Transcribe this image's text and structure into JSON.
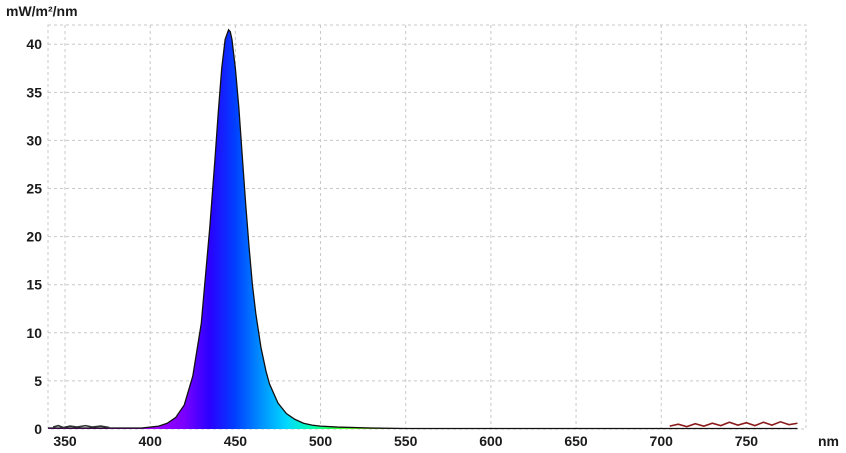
{
  "chart_data": {
    "type": "area",
    "title": "",
    "ylabel": "mW/m²/nm",
    "xlabel": "nm",
    "xlim": [
      340,
      785
    ],
    "ylim": [
      0,
      42
    ],
    "grid": true,
    "legend": "none",
    "xticks": [
      350,
      400,
      450,
      500,
      550,
      600,
      650,
      700,
      750
    ],
    "yticks": [
      0,
      5,
      10,
      15,
      20,
      25,
      30,
      35,
      40
    ],
    "series": [
      {
        "x": [
          340,
          380,
          395,
          405,
          410,
          415,
          420,
          425,
          430,
          435,
          438,
          440,
          442,
          444,
          446,
          447,
          448,
          450,
          452,
          454,
          456,
          458,
          460,
          462,
          465,
          468,
          470,
          475,
          480,
          485,
          490,
          495,
          500,
          510,
          520,
          530,
          550,
          600,
          700,
          780
        ],
        "y": [
          0.1,
          0.1,
          0.1,
          0.3,
          0.6,
          1.2,
          2.5,
          5.5,
          11,
          21,
          28,
          33,
          37.5,
          40.5,
          41.5,
          41.3,
          40.5,
          37.5,
          33.5,
          28.5,
          23.5,
          19,
          15,
          12,
          8.5,
          6,
          4.7,
          2.7,
          1.6,
          1.0,
          0.6,
          0.4,
          0.3,
          0.2,
          0.15,
          0.1,
          0.05,
          0.05,
          0.05,
          0.05
        ]
      }
    ],
    "noise": {
      "left": [
        [
          343,
          0.2
        ],
        [
          346,
          0.35
        ],
        [
          349,
          0.15
        ],
        [
          353,
          0.3
        ],
        [
          357,
          0.2
        ],
        [
          362,
          0.35
        ],
        [
          366,
          0.2
        ],
        [
          371,
          0.3
        ],
        [
          376,
          0.15
        ]
      ],
      "right": [
        [
          705,
          0.3
        ],
        [
          710,
          0.5
        ],
        [
          715,
          0.25
        ],
        [
          720,
          0.55
        ],
        [
          725,
          0.3
        ],
        [
          730,
          0.6
        ],
        [
          735,
          0.35
        ],
        [
          740,
          0.7
        ],
        [
          745,
          0.4
        ],
        [
          750,
          0.65
        ],
        [
          755,
          0.35
        ],
        [
          760,
          0.7
        ],
        [
          765,
          0.4
        ],
        [
          770,
          0.75
        ],
        [
          775,
          0.45
        ],
        [
          780,
          0.6
        ]
      ]
    },
    "colors": {
      "grid": "#c8c8c8",
      "outline": "#111111",
      "noise_left": "#333333",
      "noise_right": "#8b1a1a",
      "spectrum_stops": [
        [
          395,
          "#b000ff"
        ],
        [
          420,
          "#7a00ff"
        ],
        [
          435,
          "#2a00ff"
        ],
        [
          450,
          "#0040ff"
        ],
        [
          465,
          "#0090ff"
        ],
        [
          480,
          "#00d8ff"
        ],
        [
          495,
          "#00ffb0"
        ],
        [
          510,
          "#30ff30"
        ],
        [
          530,
          "#90ff00"
        ]
      ]
    }
  }
}
